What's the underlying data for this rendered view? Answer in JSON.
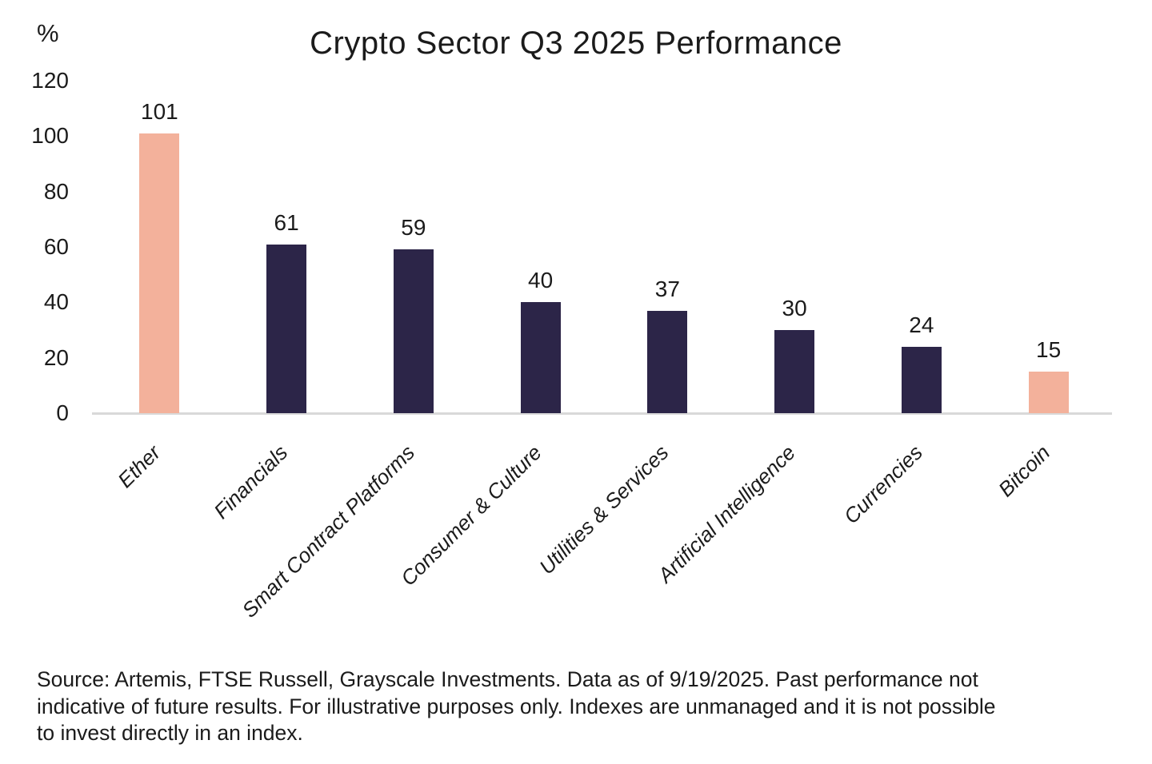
{
  "chart_data": {
    "type": "bar",
    "title": "Crypto Sector Q3 2025 Performance",
    "ylabel": "%",
    "xlabel": "",
    "categories": [
      "Ether",
      "Financials",
      "Smart Contract Platforms",
      "Consumer & Culture",
      "Utilities & Services",
      "Artificial Intelligence",
      "Currencies",
      "Bitcoin"
    ],
    "values": [
      101,
      61,
      59,
      40,
      37,
      30,
      24,
      15
    ],
    "bar_colors": [
      "#f3b19b",
      "#2c2548",
      "#2c2548",
      "#2c2548",
      "#2c2548",
      "#2c2548",
      "#2c2548",
      "#f3b19b"
    ],
    "yticks": [
      0,
      20,
      40,
      60,
      80,
      100,
      120
    ],
    "ylim": [
      0,
      120
    ],
    "grid": false,
    "legend": null,
    "xtick_rotation_deg": 45,
    "axis_line_color": "#d9d9d9"
  },
  "colors": {
    "highlight_salmon": "#f3b19b",
    "sector_navy": "#2c2548",
    "text": "#1b1b1b",
    "background": "#ffffff"
  },
  "source_text": "Source: Artemis, FTSE Russell, Grayscale Investments. Data as of 9/19/2025. Past performance not\nindicative of future results. For illustrative purposes only. Indexes are unmanaged and it is not possible\nto invest directly in an index."
}
